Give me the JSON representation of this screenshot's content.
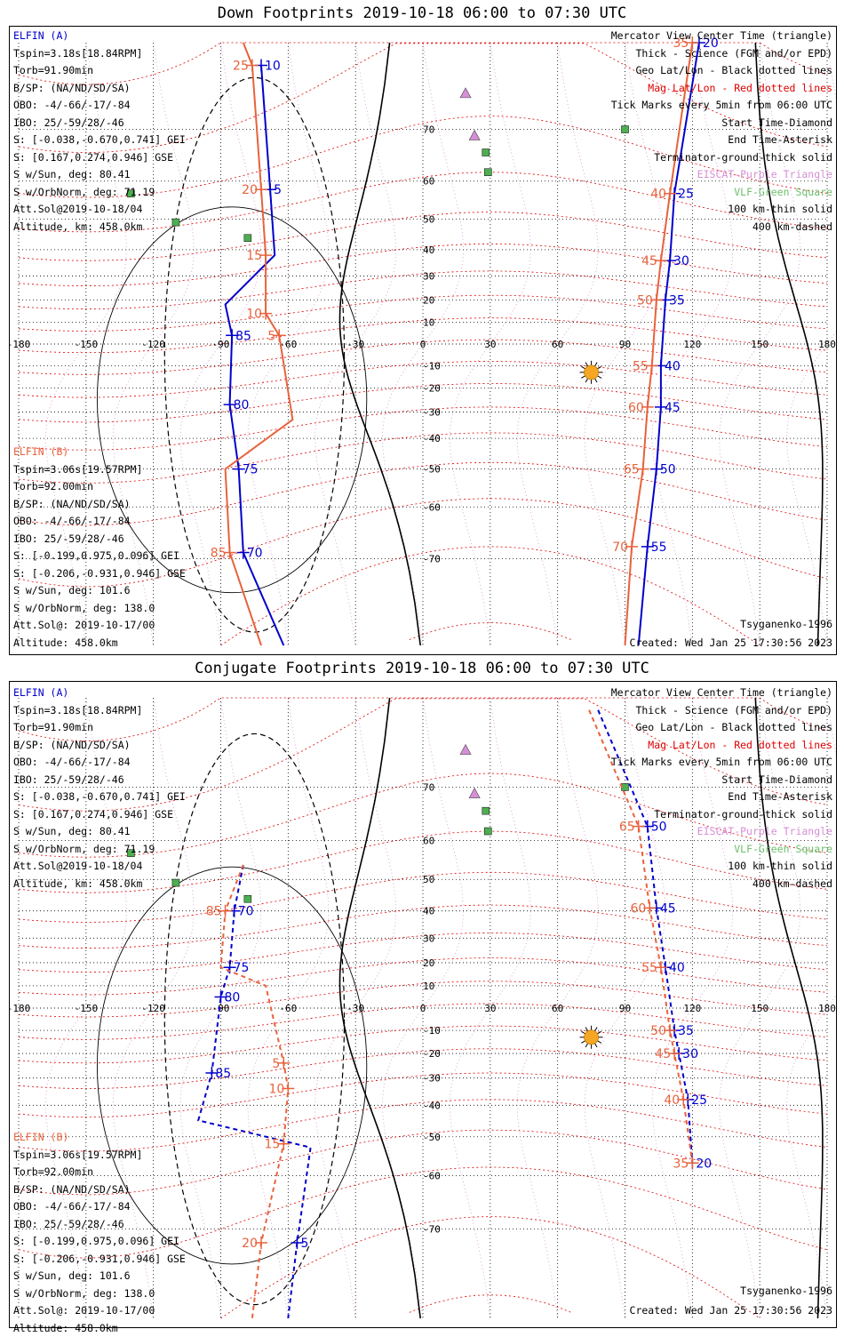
{
  "panels": [
    {
      "id": "down",
      "title": "Down Footprints 2019-10-18 06:00 to 07:30 UTC",
      "elfin_a": [
        "ELFIN (A)",
        "Tspin=3.18s[18.84RPM]",
        "Torb=91.90min",
        "B/SP: (NA/ND/SD/SA)",
        "OBO: -4/-66/-17/-84",
        "IBO: 25/-59/28/-46",
        "S: [-0.038,-0.670,0.741] GEI",
        "S: [0.167,0.274,0.946] GSE",
        "S w/Sun, deg: 80.41",
        "S w/OrbNorm, deg: 71.19",
        "Att.Sol@2019-10-18/04",
        "Altitude, km: 458.0km"
      ],
      "elfin_b": [
        "ELFIN (B)",
        "Tspin=3.06s[19.57RPM]",
        "Torb=92.00min",
        "B/SP: (NA/ND/SD/SA)",
        "OBO: -4/-66/-17/-84",
        "IBO: 25/-59/28/-46",
        "S: [-0.199,0.975,0.096] GEI",
        "S: [-0.206,-0.931,0.946] GSE",
        "S w/Sun, deg: 101.6",
        "S w/OrbNorm, deg: 138.0",
        "Att.Sol@: 2019-10-17/00",
        "Altitude: 458.0km"
      ],
      "legend": [
        {
          "text": "Mercator View Center Time (triangle)",
          "color": "black"
        },
        {
          "text": "Thick - Science (FGM and/or EPD)",
          "color": "black"
        },
        {
          "text": "Geo Lat/Lon - Black dotted lines",
          "color": "black"
        },
        {
          "text": "Mag Lat/Lon - Red dotted lines",
          "color": "magred"
        },
        {
          "text": "Tick Marks every 5min from 06:00 UTC",
          "color": "black"
        },
        {
          "text": "Start Time-Diamond",
          "color": "black"
        },
        {
          "text": "End Time-Asterisk",
          "color": "black"
        },
        {
          "text": "Terminator-ground-thick solid",
          "color": "black"
        },
        {
          "text": "EISCAT-Purple Triangle",
          "color": "pink"
        },
        {
          "text": "VLF-Green Square",
          "color": "green"
        },
        {
          "text": "100 km-thin solid",
          "color": "black"
        },
        {
          "text": "400 km-dashed",
          "color": "black"
        }
      ],
      "model": "Tsyganenko-1996",
      "created": "Created: Wed Jan 25 17:30:56 2023"
    },
    {
      "id": "conjugate",
      "title": "Conjugate Footprints 2019-10-18 06:00 to 07:30 UTC",
      "elfin_a": [
        "ELFIN (A)",
        "Tspin=3.18s[18.84RPM]",
        "Torb=91.90min",
        "B/SP: (NA/ND/SD/SA)",
        "OBO: -4/-66/-17/-84",
        "IBO: 25/-59/28/-46",
        "S: [-0.038,-0.670,0.741] GEI",
        "S: [0.167,0.274,0.946] GSE",
        "S w/Sun, deg: 80.41",
        "S w/OrbNorm, deg: 71.19",
        "Att.Sol@2019-10-18/04",
        "Altitude, km: 458.0km"
      ],
      "elfin_b": [
        "ELFIN (B)",
        "Tspin=3.06s[19.57RPM]",
        "Torb=92.00min",
        "B/SP: (NA/ND/SD/SA)",
        "OBO: -4/-66/-17/-84",
        "IBO: 25/-59/28/-46",
        "S: [-0.199,0.975,0.096] GEI",
        "S: [-0.206,-0.931,0.946] GSE",
        "S w/Sun, deg: 101.6",
        "S w/OrbNorm, deg: 138.0",
        "Att.Sol@: 2019-10-17/00",
        "Altitude: 458.0km"
      ],
      "legend": [
        {
          "text": "Mercator View Center Time (triangle)",
          "color": "black"
        },
        {
          "text": "Thick - Science (FGM and/or EPD)",
          "color": "black"
        },
        {
          "text": "Geo Lat/Lon - Black dotted lines",
          "color": "black"
        },
        {
          "text": "Mag Lat/Lon - Red dotted lines",
          "color": "magred"
        },
        {
          "text": "Tick Marks every 5min from 06:00 UTC",
          "color": "black"
        },
        {
          "text": "Start Time-Diamond",
          "color": "black"
        },
        {
          "text": "End Time-Asterisk",
          "color": "black"
        },
        {
          "text": "Terminator-ground-thick solid",
          "color": "black"
        },
        {
          "text": "EISCAT-Purple Triangle",
          "color": "pink"
        },
        {
          "text": "VLF-Green Square",
          "color": "green"
        },
        {
          "text": "100 km-thin solid",
          "color": "black"
        },
        {
          "text": "400 km-dashed",
          "color": "black"
        }
      ],
      "model": "Tsyganenko-1996",
      "created": "Created: Wed Jan 25 17:30:56 2023"
    }
  ],
  "colors": {
    "elfin_a": "#0000cc",
    "elfin_b": "#e8623c",
    "mag_grid": "#dd0000",
    "geo_grid": "#000000",
    "eiscat": "#d68fd6",
    "vlf": "#4caf50",
    "sun": "#f5a623"
  },
  "chart_data": [
    {
      "type": "scatter",
      "title": "Down Footprints 2019-10-18 06:00 to 07:30 UTC",
      "projection": "mercator",
      "xlim": [
        -180,
        180
      ],
      "ylim": [
        -80,
        80
      ],
      "lon_ticks": [
        -180,
        -150,
        -120,
        -90,
        -60,
        -30,
        0,
        30,
        60,
        90,
        120,
        150,
        180
      ],
      "lat_ticks": [
        -70,
        -60,
        -50,
        -40,
        -30,
        -20,
        -10,
        0,
        10,
        20,
        30,
        40,
        50,
        60,
        70
      ],
      "lon_tick_labels": [
        "-180",
        "-150",
        "-120",
        "-90",
        "-60",
        "-30",
        "0",
        "30",
        "60",
        "90",
        "120",
        "150",
        "180"
      ],
      "lat_tick_labels": [
        "-70",
        "-60",
        "-50",
        "-40",
        "-30",
        "-20",
        "-10",
        "0",
        "10",
        "20",
        "30",
        "40",
        "50",
        "60",
        "70"
      ],
      "grid": true,
      "series": [
        {
          "name": "ELFIN (A)",
          "style": "solid",
          "points": [
            {
              "lon": -72,
              "lat": 78,
              "label": "10"
            },
            {
              "lon": -68,
              "lat": 58,
              "label": "5"
            },
            {
              "lon": -66,
              "lat": 38
            },
            {
              "lon": -88,
              "lat": 18
            },
            {
              "lon": -85,
              "lat": 4,
              "label": "85"
            },
            {
              "lon": -86,
              "lat": -27,
              "label": "80"
            },
            {
              "lon": -82,
              "lat": -50,
              "label": "75"
            },
            {
              "lon": -80,
              "lat": -69,
              "label": "70"
            },
            {
              "lon": -62,
              "lat": -80
            }
          ]
        },
        {
          "name": "ELFIN (B)",
          "style": "solid",
          "points": [
            {
              "lon": -80,
              "lat": 80
            },
            {
              "lon": -76,
              "lat": 78,
              "label": "25"
            },
            {
              "lon": -72,
              "lat": 58,
              "label": "20"
            },
            {
              "lon": -70,
              "lat": 38,
              "label": "15"
            },
            {
              "lon": -70,
              "lat": 14,
              "label": "10"
            },
            {
              "lon": -64,
              "lat": 4,
              "label": "5"
            },
            {
              "lon": -58,
              "lat": -33
            },
            {
              "lon": -88,
              "lat": -50
            },
            {
              "lon": -86,
              "lat": -69,
              "label": "85"
            },
            {
              "lon": -72,
              "lat": -80
            }
          ]
        },
        {
          "name": "ELFIN (A)",
          "style": "solid",
          "points": [
            {
              "lon": 123,
              "lat": 80,
              "label": "20"
            },
            {
              "lon": 112,
              "lat": 57,
              "label": "25"
            },
            {
              "lon": 110,
              "lat": 36,
              "label": "30"
            },
            {
              "lon": 108,
              "lat": 20,
              "label": "35"
            },
            {
              "lon": 106,
              "lat": -10,
              "label": "40"
            },
            {
              "lon": 106,
              "lat": -28,
              "label": "45"
            },
            {
              "lon": 104,
              "lat": -50,
              "label": "50"
            },
            {
              "lon": 100,
              "lat": -68,
              "label": "55"
            },
            {
              "lon": 96,
              "lat": -80
            }
          ]
        },
        {
          "name": "ELFIN (B)",
          "style": "solid",
          "points": [
            {
              "lon": 120,
              "lat": 80,
              "label": "35"
            },
            {
              "lon": 110,
              "lat": 57,
              "label": "40"
            },
            {
              "lon": 106,
              "lat": 36,
              "label": "45"
            },
            {
              "lon": 104,
              "lat": 20,
              "label": "50"
            },
            {
              "lon": 102,
              "lat": -10,
              "label": "55"
            },
            {
              "lon": 100,
              "lat": -28,
              "label": "60"
            },
            {
              "lon": 98,
              "lat": -50,
              "label": "65"
            },
            {
              "lon": 93,
              "lat": -68,
              "label": "70"
            },
            {
              "lon": 90,
              "lat": -80
            }
          ]
        }
      ],
      "sites": [
        {
          "kind": "eiscat",
          "lon": 19,
          "lat": 75
        },
        {
          "kind": "eiscat",
          "lon": 23,
          "lat": 69
        },
        {
          "kind": "vlf",
          "lon": -130,
          "lat": 57
        },
        {
          "kind": "vlf",
          "lon": -110,
          "lat": 49
        },
        {
          "kind": "vlf",
          "lon": -78,
          "lat": 44
        },
        {
          "kind": "vlf",
          "lon": 28,
          "lat": 66
        },
        {
          "kind": "vlf",
          "lon": 29,
          "lat": 62
        },
        {
          "kind": "vlf",
          "lon": 90,
          "lat": 70
        }
      ],
      "sun": {
        "lon": 75,
        "lat": -13
      }
    },
    {
      "type": "scatter",
      "title": "Conjugate Footprints 2019-10-18 06:00 to 07:30 UTC",
      "projection": "mercator",
      "xlim": [
        -180,
        180
      ],
      "ylim": [
        -80,
        80
      ],
      "lon_ticks": [
        -180,
        -150,
        -120,
        -90,
        -60,
        -30,
        0,
        30,
        60,
        90,
        120,
        150,
        180
      ],
      "lat_ticks": [
        -70,
        -60,
        -50,
        -40,
        -30,
        -20,
        -10,
        0,
        10,
        20,
        30,
        40,
        50,
        60,
        70
      ],
      "lon_tick_labels": [
        "-180",
        "-150",
        "-120",
        "-90",
        "-60",
        "-30",
        "0",
        "30",
        "60",
        "90",
        "120",
        "150",
        "180"
      ],
      "lat_tick_labels": [
        "-70",
        "-60",
        "-50",
        "-40",
        "-30",
        "-20",
        "-10",
        "0",
        "10",
        "20",
        "30",
        "40",
        "50",
        "60",
        "70"
      ],
      "grid": true,
      "series": [
        {
          "name": "ELFIN (A)",
          "style": "dashed",
          "points": [
            {
              "lon": -80,
              "lat": 54
            },
            {
              "lon": -84,
              "lat": 40,
              "label": "70"
            },
            {
              "lon": -86,
              "lat": 18,
              "label": "75"
            },
            {
              "lon": -90,
              "lat": 5,
              "label": "80"
            },
            {
              "lon": -94,
              "lat": -28,
              "label": "85"
            },
            {
              "lon": -100,
              "lat": -45
            },
            {
              "lon": -50,
              "lat": -53
            },
            {
              "lon": -56,
              "lat": -72,
              "label": "5"
            },
            {
              "lon": -60,
              "lat": -80
            }
          ]
        },
        {
          "name": "ELFIN (B)",
          "style": "dashed",
          "points": [
            {
              "lon": -80,
              "lat": 54
            },
            {
              "lon": -88,
              "lat": 40,
              "label": "85"
            },
            {
              "lon": -90,
              "lat": 18
            },
            {
              "lon": -70,
              "lat": 10
            },
            {
              "lon": -62,
              "lat": -24,
              "label": "5"
            },
            {
              "lon": -60,
              "lat": -34,
              "label": "10"
            },
            {
              "lon": -62,
              "lat": -52,
              "label": "15"
            },
            {
              "lon": -72,
              "lat": -72,
              "label": "20"
            },
            {
              "lon": -76,
              "lat": -80
            }
          ]
        },
        {
          "name": "ELFIN (A)",
          "style": "dashed",
          "points": [
            {
              "lon": 78,
              "lat": 79
            },
            {
              "lon": 100,
              "lat": 63,
              "label": "50"
            },
            {
              "lon": 104,
              "lat": 41,
              "label": "45"
            },
            {
              "lon": 108,
              "lat": 18,
              "label": "40"
            },
            {
              "lon": 112,
              "lat": -10,
              "label": "35"
            },
            {
              "lon": 114,
              "lat": -20,
              "label": "30"
            },
            {
              "lon": 118,
              "lat": -38,
              "label": "25"
            },
            {
              "lon": 120,
              "lat": -57,
              "label": "20"
            }
          ]
        },
        {
          "name": "ELFIN (B)",
          "style": "dashed",
          "points": [
            {
              "lon": 74,
              "lat": 79
            },
            {
              "lon": 96,
              "lat": 63,
              "label": "65"
            },
            {
              "lon": 101,
              "lat": 41,
              "label": "60"
            },
            {
              "lon": 106,
              "lat": 18,
              "label": "55"
            },
            {
              "lon": 110,
              "lat": -10,
              "label": "50"
            },
            {
              "lon": 112,
              "lat": -20,
              "label": "45"
            },
            {
              "lon": 116,
              "lat": -38,
              "label": "40"
            },
            {
              "lon": 120,
              "lat": -57,
              "label": "35"
            }
          ]
        }
      ],
      "sites": [
        {
          "kind": "eiscat",
          "lon": 19,
          "lat": 75
        },
        {
          "kind": "eiscat",
          "lon": 23,
          "lat": 69
        },
        {
          "kind": "vlf",
          "lon": -130,
          "lat": 57
        },
        {
          "kind": "vlf",
          "lon": -110,
          "lat": 49
        },
        {
          "kind": "vlf",
          "lon": -78,
          "lat": 44
        },
        {
          "kind": "vlf",
          "lon": 28,
          "lat": 66
        },
        {
          "kind": "vlf",
          "lon": 29,
          "lat": 62
        },
        {
          "kind": "vlf",
          "lon": 90,
          "lat": 70
        }
      ],
      "sun": {
        "lon": 75,
        "lat": -13
      }
    }
  ]
}
